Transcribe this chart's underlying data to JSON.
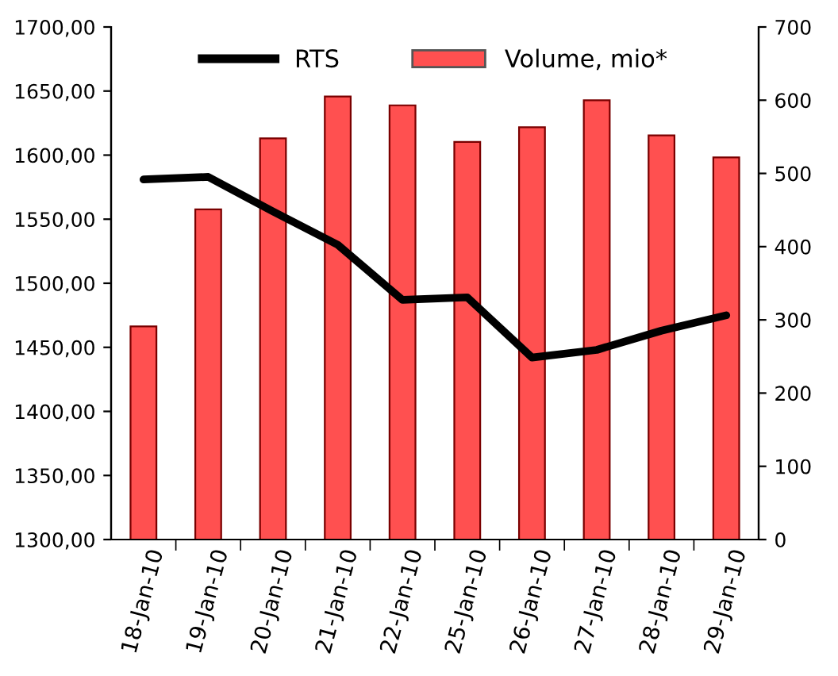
{
  "chart_data": {
    "type": "bar",
    "categories": [
      "18-Jan-10",
      "19-Jan-10",
      "20-Jan-10",
      "21-Jan-10",
      "22-Jan-10",
      "25-Jan-10",
      "26-Jan-10",
      "27-Jan-10",
      "28-Jan-10",
      "29-Jan-10"
    ],
    "series": [
      {
        "name": "RTS",
        "type": "line",
        "color": "#000000",
        "values": [
          1581,
          1583,
          1556,
          1530,
          1487,
          1489,
          1442,
          1448,
          1463,
          1475
        ]
      },
      {
        "name": "Volume, mio*",
        "axis": "y2",
        "color": "#ff5050",
        "values": [
          291,
          451,
          548,
          605,
          593,
          543,
          563,
          600,
          552,
          522
        ]
      }
    ],
    "ylim": [
      1300,
      1700
    ],
    "yticks": [
      {
        "value": 1300,
        "label": "1300,00"
      },
      {
        "value": 1350,
        "label": "1350,00"
      },
      {
        "value": 1400,
        "label": "1400,00"
      },
      {
        "value": 1450,
        "label": "1450,00"
      },
      {
        "value": 1500,
        "label": "1500,00"
      },
      {
        "value": 1550,
        "label": "1550,00"
      },
      {
        "value": 1600,
        "label": "1600,00"
      },
      {
        "value": 1650,
        "label": "1650,00"
      },
      {
        "value": 1700,
        "label": "1700,00"
      }
    ],
    "y2lim": [
      0,
      700
    ],
    "y2ticks": [
      0,
      100,
      200,
      300,
      400,
      500,
      600,
      700
    ],
    "legend": "top",
    "grid": false,
    "line_style": "solid",
    "marker": "none"
  }
}
